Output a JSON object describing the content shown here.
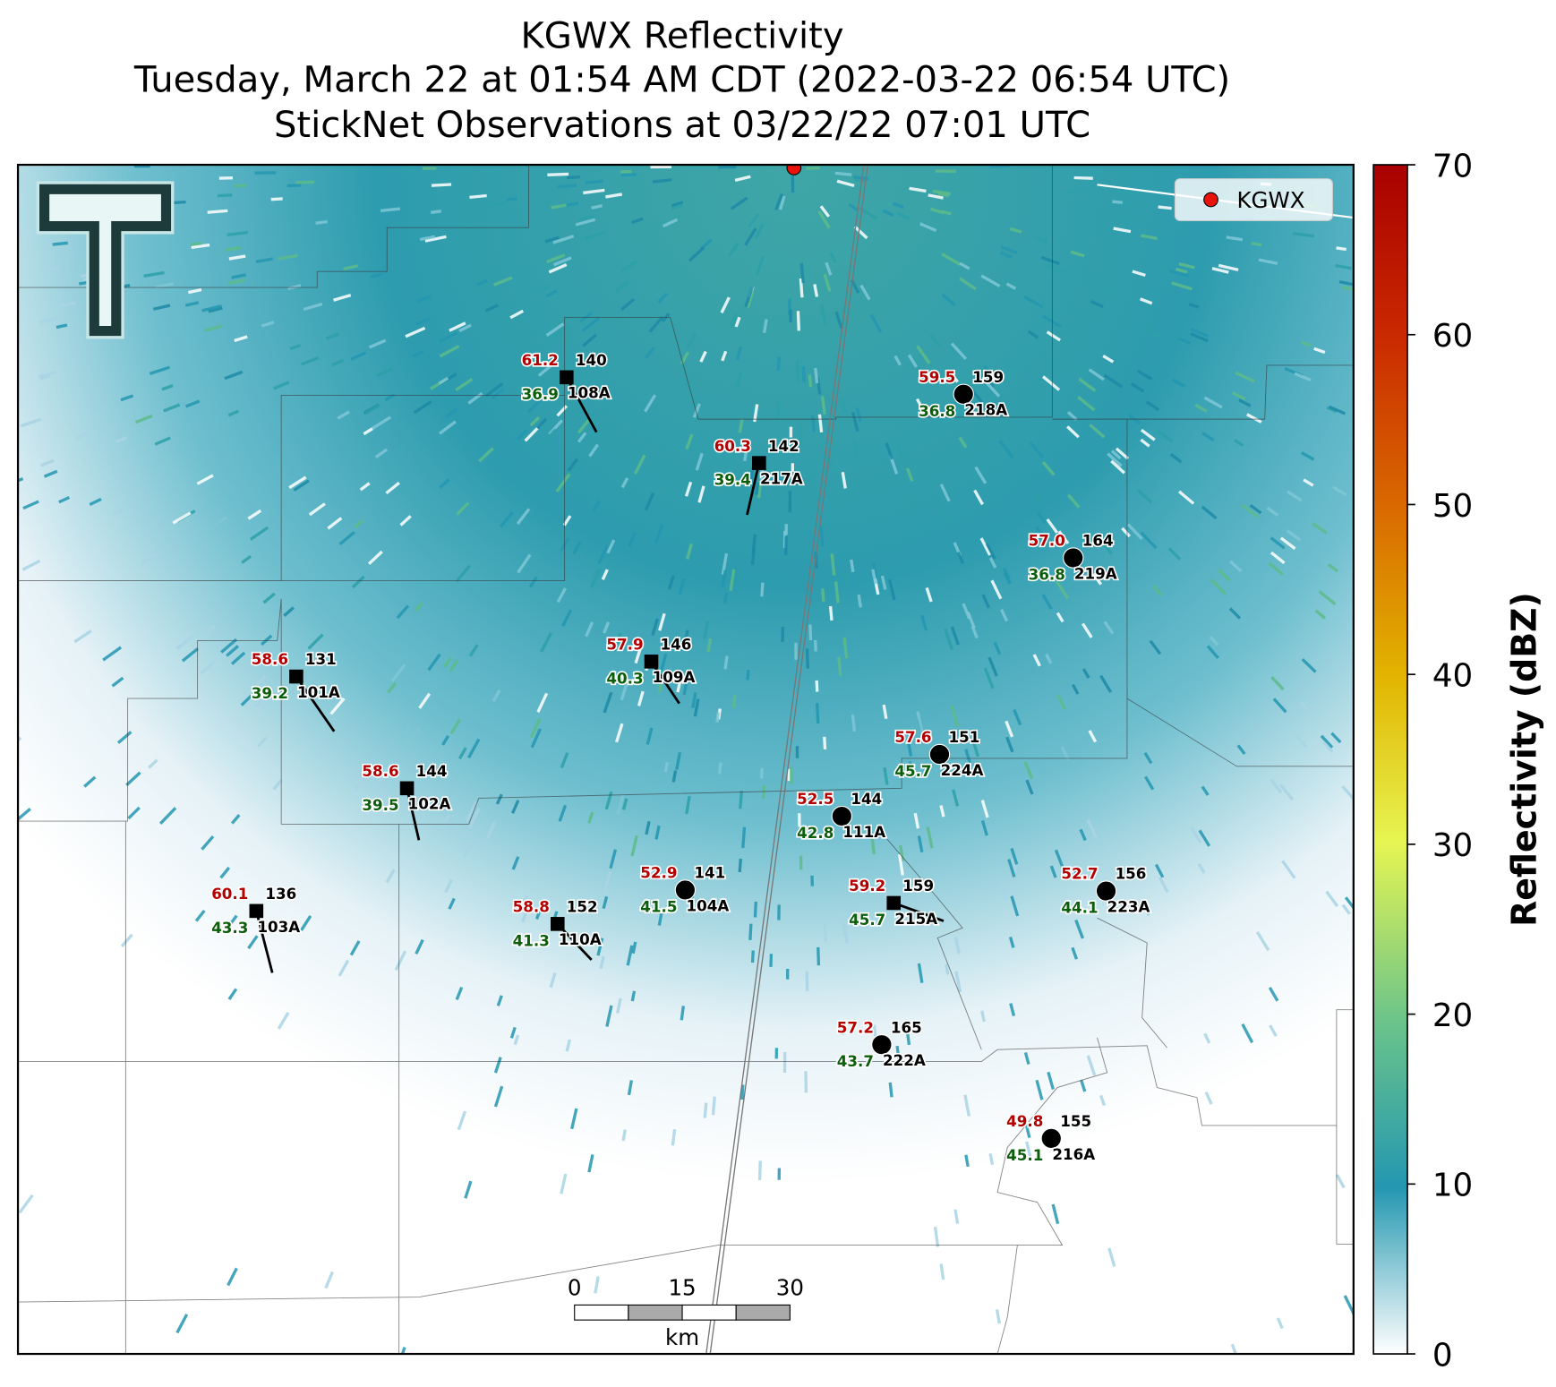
{
  "header": {
    "title": "KGWX Reflectivity",
    "subtitle": "Tuesday, March 22 at 01:54 AM CDT (2022-03-22 06:54 UTC)",
    "observations": "StickNet Observations at 03/22/22 07:01 UTC"
  },
  "legend": {
    "label": "KGWX"
  },
  "colorbar": {
    "label": "Reflectivity (dBZ)",
    "range": [
      0,
      70
    ],
    "ticks": [
      0,
      10,
      20,
      30,
      40,
      50,
      60,
      70
    ]
  },
  "scale_bar": {
    "ticks": [
      "0",
      "15",
      "30"
    ],
    "unit": "km"
  },
  "stations": [
    {
      "id": "108A",
      "temperature": "61.2",
      "dewpoint": "36.9",
      "value": "140",
      "marker": "square"
    },
    {
      "id": "217A",
      "temperature": "60.3",
      "dewpoint": "39.4",
      "value": "142",
      "marker": "square"
    },
    {
      "id": "218A",
      "temperature": "59.5",
      "dewpoint": "36.8",
      "value": "159",
      "marker": "circle"
    },
    {
      "id": "219A",
      "temperature": "57.0",
      "dewpoint": "36.8",
      "value": "164",
      "marker": "circle"
    },
    {
      "id": "101A",
      "temperature": "58.6",
      "dewpoint": "39.2",
      "value": "131",
      "marker": "square"
    },
    {
      "id": "109A",
      "temperature": "57.9",
      "dewpoint": "40.3",
      "value": "146",
      "marker": "square"
    },
    {
      "id": "224A",
      "temperature": "57.6",
      "dewpoint": "45.7",
      "value": "151",
      "marker": "circle"
    },
    {
      "id": "102A",
      "temperature": "58.6",
      "dewpoint": "39.5",
      "value": "144",
      "marker": "square"
    },
    {
      "id": "111A",
      "temperature": "52.5",
      "dewpoint": "42.8",
      "value": "144",
      "marker": "circle"
    },
    {
      "id": "104A",
      "temperature": "52.9",
      "dewpoint": "41.5",
      "value": "141",
      "marker": "circle"
    },
    {
      "id": "215A",
      "temperature": "59.2",
      "dewpoint": "45.7",
      "value": "159",
      "marker": "square"
    },
    {
      "id": "223A",
      "temperature": "52.7",
      "dewpoint": "44.1",
      "value": "156",
      "marker": "circle"
    },
    {
      "id": "103A",
      "temperature": "60.1",
      "dewpoint": "43.3",
      "value": "136",
      "marker": "square"
    },
    {
      "id": "110A",
      "temperature": "58.8",
      "dewpoint": "41.3",
      "value": "152",
      "marker": "square"
    },
    {
      "id": "222A",
      "temperature": "57.2",
      "dewpoint": "43.7",
      "value": "165",
      "marker": "circle"
    },
    {
      "id": "216A",
      "temperature": "49.8",
      "dewpoint": "45.1",
      "value": "155",
      "marker": "circle"
    }
  ]
}
